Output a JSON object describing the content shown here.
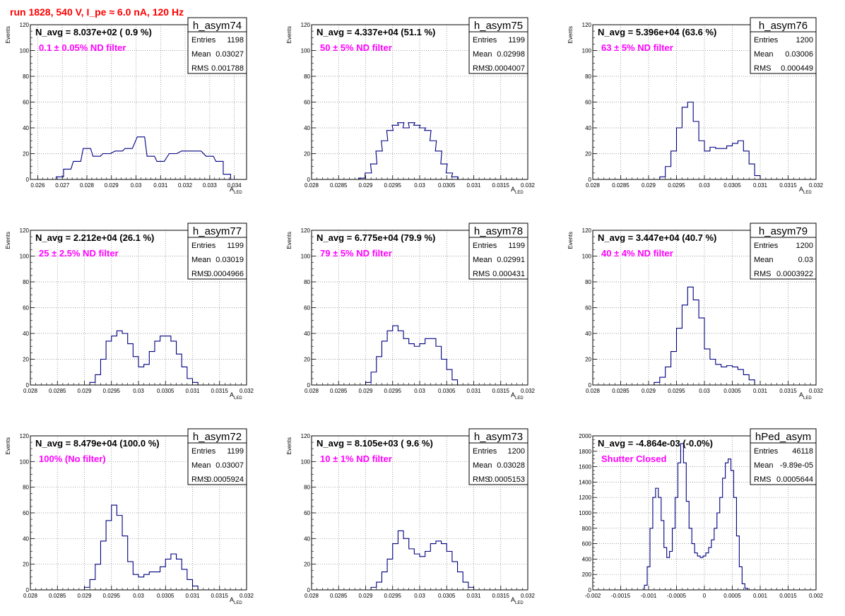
{
  "page": {
    "suptitle": "run 1828,   540 V, I_pe ≈ 6.0 nA, 120 Hz"
  },
  "stats_labels": {
    "entries": "Entries",
    "mean": "Mean",
    "rms": "RMS"
  },
  "colors": {
    "histogram": "#000080",
    "frame": "#000000",
    "grid": "#808080",
    "filter_label": "#ff00ff",
    "suptitle": "#ff0000",
    "background": "#ffffff"
  },
  "chart_data": [
    {
      "type": "histogram",
      "hist_name": "h_asym74",
      "navg_label": "N_avg = 8.037e+02 ( 0.9 %)",
      "filter_label": "0.1 ± 0.05% ND filter",
      "entries": "1198",
      "mean": "0.03027",
      "rms": "0.001788",
      "ylabel": "Events",
      "xlabel": "A_LED",
      "xlim": [
        0.0257,
        0.0345
      ],
      "ylim": [
        0,
        120
      ],
      "xticks": [
        0.026,
        0.027,
        0.028,
        0.029,
        0.03,
        0.031,
        0.032,
        0.033,
        0.034
      ],
      "xtick_labels": [
        "0.026",
        "0.027",
        "0.028",
        "0.029",
        "0.03",
        "0.031",
        "0.032",
        "0.033",
        "0.034"
      ],
      "yticks": [
        0,
        20,
        40,
        60,
        80,
        100,
        120
      ],
      "ytick_labels": [
        "0",
        "20",
        "40",
        "60",
        "80",
        "100",
        "120"
      ],
      "bins": [
        [
          0.0269,
          2
        ],
        [
          0.0272,
          8
        ],
        [
          0.0276,
          14
        ],
        [
          0.028,
          24
        ],
        [
          0.0284,
          18
        ],
        [
          0.0288,
          20
        ],
        [
          0.0293,
          22
        ],
        [
          0.0297,
          24
        ],
        [
          0.0302,
          33
        ],
        [
          0.0306,
          18
        ],
        [
          0.031,
          14
        ],
        [
          0.0315,
          20
        ],
        [
          0.032,
          22
        ],
        [
          0.0325,
          22
        ],
        [
          0.033,
          18
        ],
        [
          0.0334,
          14
        ],
        [
          0.0337,
          4
        ]
      ]
    },
    {
      "type": "histogram",
      "hist_name": "h_asym75",
      "navg_label": "N_avg = 4.337e+04 (51.1 %)",
      "filter_label": "50 ± 5% ND filter",
      "entries": "1199",
      "mean": "0.02998",
      "rms": "0.0004007",
      "ylabel": "Events",
      "xlabel": "A_LED",
      "xlim": [
        0.028,
        0.032
      ],
      "ylim": [
        0,
        120
      ],
      "xticks": [
        0.028,
        0.0285,
        0.029,
        0.0295,
        0.03,
        0.0305,
        0.031,
        0.0315,
        0.032
      ],
      "xtick_labels": [
        "0.028",
        "0.0285",
        "0.029",
        "0.0295",
        "0.03",
        "0.0305",
        "0.031",
        "0.0315",
        "0.032"
      ],
      "yticks": [
        0,
        20,
        40,
        60,
        80,
        100,
        120
      ],
      "ytick_labels": [
        "0",
        "20",
        "40",
        "60",
        "80",
        "100",
        "120"
      ],
      "bins": [
        [
          0.02893,
          1
        ],
        [
          0.02905,
          5
        ],
        [
          0.02915,
          12
        ],
        [
          0.02925,
          22
        ],
        [
          0.02935,
          30
        ],
        [
          0.02945,
          38
        ],
        [
          0.02955,
          42
        ],
        [
          0.02965,
          44
        ],
        [
          0.02975,
          40
        ],
        [
          0.02985,
          44
        ],
        [
          0.02995,
          42
        ],
        [
          0.03005,
          40
        ],
        [
          0.03015,
          38
        ],
        [
          0.03025,
          30
        ],
        [
          0.03035,
          22
        ],
        [
          0.03045,
          12
        ],
        [
          0.03055,
          5
        ],
        [
          0.03065,
          2
        ]
      ]
    },
    {
      "type": "histogram",
      "hist_name": "h_asym76",
      "navg_label": "N_avg = 5.396e+04 (63.6 %)",
      "filter_label": "63 ± 5% ND filter",
      "entries": "1200",
      "mean": "0.03006",
      "rms": "0.000449",
      "ylabel": "Events",
      "xlabel": "A_LED",
      "xlim": [
        0.028,
        0.032
      ],
      "ylim": [
        0,
        120
      ],
      "xticks": [
        0.028,
        0.0285,
        0.029,
        0.0295,
        0.03,
        0.0305,
        0.031,
        0.0315,
        0.032
      ],
      "xtick_labels": [
        "0.028",
        "0.0285",
        "0.029",
        "0.0295",
        "0.03",
        "0.0305",
        "0.031",
        "0.0315",
        "0.032"
      ],
      "yticks": [
        0,
        20,
        40,
        60,
        80,
        100,
        120
      ],
      "ytick_labels": [
        "0",
        "20",
        "40",
        "60",
        "80",
        "100",
        "120"
      ],
      "bins": [
        [
          0.02925,
          2
        ],
        [
          0.02935,
          10
        ],
        [
          0.02945,
          22
        ],
        [
          0.02955,
          40
        ],
        [
          0.02965,
          56
        ],
        [
          0.02975,
          60
        ],
        [
          0.02985,
          45
        ],
        [
          0.02995,
          30
        ],
        [
          0.03005,
          22
        ],
        [
          0.03015,
          25
        ],
        [
          0.03025,
          24
        ],
        [
          0.03035,
          24
        ],
        [
          0.03045,
          26
        ],
        [
          0.03055,
          28
        ],
        [
          0.03065,
          30
        ],
        [
          0.03075,
          22
        ],
        [
          0.03085,
          12
        ],
        [
          0.03095,
          3
        ]
      ]
    },
    {
      "type": "histogram",
      "hist_name": "h_asym77",
      "navg_label": "N_avg = 2.212e+04 (26.1 %)",
      "filter_label": "25 ± 2.5% ND filter",
      "entries": "1199",
      "mean": "0.03019",
      "rms": "0.0004966",
      "ylabel": "Events",
      "xlabel": "A_LED",
      "xlim": [
        0.028,
        0.032
      ],
      "ylim": [
        0,
        120
      ],
      "xticks": [
        0.028,
        0.0285,
        0.029,
        0.0295,
        0.03,
        0.0305,
        0.031,
        0.0315,
        0.032
      ],
      "xtick_labels": [
        "0.028",
        "0.0285",
        "0.029",
        "0.0295",
        "0.03",
        "0.0305",
        "0.031",
        "0.0315",
        "0.032"
      ],
      "yticks": [
        0,
        20,
        40,
        60,
        80,
        100,
        120
      ],
      "ytick_labels": [
        "0",
        "20",
        "40",
        "60",
        "80",
        "100",
        "120"
      ],
      "bins": [
        [
          0.02915,
          2
        ],
        [
          0.02925,
          8
        ],
        [
          0.02935,
          20
        ],
        [
          0.02945,
          34
        ],
        [
          0.02955,
          38
        ],
        [
          0.02965,
          42
        ],
        [
          0.02975,
          40
        ],
        [
          0.02985,
          32
        ],
        [
          0.02995,
          22
        ],
        [
          0.03005,
          14
        ],
        [
          0.03015,
          16
        ],
        [
          0.03025,
          26
        ],
        [
          0.03035,
          34
        ],
        [
          0.03045,
          38
        ],
        [
          0.03055,
          38
        ],
        [
          0.03065,
          34
        ],
        [
          0.03075,
          24
        ],
        [
          0.03085,
          14
        ],
        [
          0.03095,
          5
        ],
        [
          0.03105,
          2
        ]
      ]
    },
    {
      "type": "histogram",
      "hist_name": "h_asym78",
      "navg_label": "N_avg = 6.775e+04 (79.9 %)",
      "filter_label": "79 ± 5% ND filter",
      "entries": "1199",
      "mean": "0.02991",
      "rms": "0.000431",
      "ylabel": "Events",
      "xlabel": "A_LED",
      "xlim": [
        0.028,
        0.032
      ],
      "ylim": [
        0,
        120
      ],
      "xticks": [
        0.028,
        0.0285,
        0.029,
        0.0295,
        0.03,
        0.0305,
        0.031,
        0.0315,
        0.032
      ],
      "xtick_labels": [
        "0.028",
        "0.0285",
        "0.029",
        "0.0295",
        "0.03",
        "0.0305",
        "0.031",
        "0.0315",
        "0.032"
      ],
      "yticks": [
        0,
        20,
        40,
        60,
        80,
        100,
        120
      ],
      "ytick_labels": [
        "0",
        "20",
        "40",
        "60",
        "80",
        "100",
        "120"
      ],
      "bins": [
        [
          0.02905,
          2
        ],
        [
          0.02915,
          10
        ],
        [
          0.02925,
          22
        ],
        [
          0.02935,
          34
        ],
        [
          0.02945,
          42
        ],
        [
          0.02955,
          46
        ],
        [
          0.02965,
          42
        ],
        [
          0.02975,
          36
        ],
        [
          0.02985,
          32
        ],
        [
          0.02995,
          30
        ],
        [
          0.03005,
          32
        ],
        [
          0.03015,
          36
        ],
        [
          0.03025,
          36
        ],
        [
          0.03035,
          30
        ],
        [
          0.03045,
          20
        ],
        [
          0.03055,
          12
        ],
        [
          0.03065,
          4
        ]
      ]
    },
    {
      "type": "histogram",
      "hist_name": "h_asym79",
      "navg_label": "N_avg = 3.447e+04 (40.7 %)",
      "filter_label": "40 ± 4% ND filter",
      "entries": "1200",
      "mean": "0.03",
      "rms": "0.0003922",
      "ylabel": "Events",
      "xlabel": "A_LED",
      "xlim": [
        0.028,
        0.032
      ],
      "ylim": [
        0,
        120
      ],
      "xticks": [
        0.028,
        0.0285,
        0.029,
        0.0295,
        0.03,
        0.0305,
        0.031,
        0.0315,
        0.032
      ],
      "xtick_labels": [
        "0.028",
        "0.0285",
        "0.029",
        "0.0295",
        "0.03",
        "0.0305",
        "0.031",
        "0.0315",
        "0.032"
      ],
      "yticks": [
        0,
        20,
        40,
        60,
        80,
        100,
        120
      ],
      "ytick_labels": [
        "0",
        "20",
        "40",
        "60",
        "80",
        "100",
        "120"
      ],
      "bins": [
        [
          0.02915,
          2
        ],
        [
          0.02925,
          6
        ],
        [
          0.02935,
          14
        ],
        [
          0.02945,
          26
        ],
        [
          0.02955,
          44
        ],
        [
          0.02965,
          62
        ],
        [
          0.02975,
          76
        ],
        [
          0.02985,
          66
        ],
        [
          0.02995,
          52
        ],
        [
          0.03005,
          28
        ],
        [
          0.03015,
          20
        ],
        [
          0.03025,
          16
        ],
        [
          0.03035,
          14
        ],
        [
          0.03045,
          15
        ],
        [
          0.03055,
          14
        ],
        [
          0.03065,
          12
        ],
        [
          0.03075,
          8
        ],
        [
          0.03085,
          4
        ]
      ]
    },
    {
      "type": "histogram",
      "hist_name": "h_asym72",
      "navg_label": "N_avg = 8.479e+04 (100.0 %)",
      "filter_label": "100% (No filter)",
      "entries": "1199",
      "mean": "0.03007",
      "rms": "0.0005924",
      "ylabel": "Events",
      "xlabel": "A_LED",
      "xlim": [
        0.028,
        0.032
      ],
      "ylim": [
        0,
        120
      ],
      "xticks": [
        0.028,
        0.0285,
        0.029,
        0.0295,
        0.03,
        0.0305,
        0.031,
        0.0315,
        0.032
      ],
      "xtick_labels": [
        "0.028",
        "0.0285",
        "0.029",
        "0.0295",
        "0.03",
        "0.0305",
        "0.031",
        "0.0315",
        "0.032"
      ],
      "yticks": [
        0,
        20,
        40,
        60,
        80,
        100,
        120
      ],
      "ytick_labels": [
        "0",
        "20",
        "40",
        "60",
        "80",
        "100",
        "120"
      ],
      "bins": [
        [
          0.02905,
          2
        ],
        [
          0.02915,
          8
        ],
        [
          0.02925,
          20
        ],
        [
          0.02935,
          38
        ],
        [
          0.02945,
          54
        ],
        [
          0.02955,
          66
        ],
        [
          0.02965,
          58
        ],
        [
          0.02975,
          42
        ],
        [
          0.02985,
          22
        ],
        [
          0.02995,
          12
        ],
        [
          0.03005,
          10
        ],
        [
          0.03015,
          12
        ],
        [
          0.03025,
          14
        ],
        [
          0.03035,
          14
        ],
        [
          0.03045,
          18
        ],
        [
          0.03055,
          24
        ],
        [
          0.03065,
          28
        ],
        [
          0.03075,
          24
        ],
        [
          0.03085,
          16
        ],
        [
          0.03095,
          8
        ],
        [
          0.03105,
          3
        ]
      ]
    },
    {
      "type": "histogram",
      "hist_name": "h_asym73",
      "navg_label": "N_avg = 8.105e+03 ( 9.6 %)",
      "filter_label": "10 ± 1% ND filter",
      "entries": "1200",
      "mean": "0.03028",
      "rms": "0.0005153",
      "ylabel": "Events",
      "xlabel": "A_LED",
      "xlim": [
        0.028,
        0.032
      ],
      "ylim": [
        0,
        120
      ],
      "xticks": [
        0.028,
        0.0285,
        0.029,
        0.0295,
        0.03,
        0.0305,
        0.031,
        0.0315,
        0.032
      ],
      "xtick_labels": [
        "0.028",
        "0.0285",
        "0.029",
        "0.0295",
        "0.03",
        "0.0305",
        "0.031",
        "0.0315",
        "0.032"
      ],
      "yticks": [
        0,
        20,
        40,
        60,
        80,
        100,
        120
      ],
      "ytick_labels": [
        "0",
        "20",
        "40",
        "60",
        "80",
        "100",
        "120"
      ],
      "bins": [
        [
          0.02915,
          2
        ],
        [
          0.02925,
          6
        ],
        [
          0.02935,
          14
        ],
        [
          0.02945,
          24
        ],
        [
          0.02955,
          36
        ],
        [
          0.02965,
          46
        ],
        [
          0.02975,
          40
        ],
        [
          0.02985,
          32
        ],
        [
          0.02995,
          28
        ],
        [
          0.03005,
          26
        ],
        [
          0.03015,
          30
        ],
        [
          0.03025,
          36
        ],
        [
          0.03035,
          38
        ],
        [
          0.03045,
          36
        ],
        [
          0.03055,
          30
        ],
        [
          0.03065,
          22
        ],
        [
          0.03075,
          14
        ],
        [
          0.03085,
          6
        ],
        [
          0.03095,
          2
        ]
      ]
    },
    {
      "type": "histogram",
      "hist_name": "hPed_asym",
      "navg_label": "N_avg = -4.864e-03 (-0.0%)",
      "filter_label": "Shutter Closed",
      "entries": "46118",
      "mean": "-9.89e-05",
      "rms": "0.0005644",
      "ylabel": "",
      "xlabel": "",
      "xlim": [
        -0.002,
        0.002
      ],
      "ylim": [
        0,
        2000
      ],
      "xticks": [
        -0.002,
        -0.0015,
        -0.001,
        -0.0005,
        0,
        0.0005,
        0.001,
        0.0015,
        0.002
      ],
      "xtick_labels": [
        "-0.002",
        "-0.0015",
        "-0.001",
        "-0.0005",
        "0",
        "0.0005",
        "0.001",
        "0.0015",
        "0.002"
      ],
      "yticks": [
        0,
        200,
        400,
        600,
        800,
        1000,
        1200,
        1400,
        1600,
        1800,
        2000
      ],
      "ytick_labels": [
        "0",
        "200",
        "400",
        "600",
        "800",
        "1000",
        "1200",
        "1400",
        "1600",
        "1800",
        "2000"
      ],
      "bins": [
        [
          -0.00105,
          60
        ],
        [
          -0.001,
          300
        ],
        [
          -0.00095,
          800
        ],
        [
          -0.0009,
          1200
        ],
        [
          -0.00085,
          1320
        ],
        [
          -0.0008,
          1200
        ],
        [
          -0.00075,
          900
        ],
        [
          -0.0007,
          550
        ],
        [
          -0.00065,
          420
        ],
        [
          -0.0006,
          500
        ],
        [
          -0.00055,
          800
        ],
        [
          -0.0005,
          1200
        ],
        [
          -0.00045,
          1650
        ],
        [
          -0.0004,
          1900
        ],
        [
          -0.00035,
          1650
        ],
        [
          -0.0003,
          1150
        ],
        [
          -0.00025,
          800
        ],
        [
          -0.0002,
          600
        ],
        [
          -0.00015,
          480
        ],
        [
          -0.0001,
          440
        ],
        [
          -5e-05,
          420
        ],
        [
          0.0,
          440
        ],
        [
          5e-05,
          480
        ],
        [
          0.0001,
          550
        ],
        [
          0.00015,
          650
        ],
        [
          0.0002,
          800
        ],
        [
          0.00025,
          1000
        ],
        [
          0.0003,
          1200
        ],
        [
          0.00035,
          1450
        ],
        [
          0.0004,
          1650
        ],
        [
          0.00045,
          1700
        ],
        [
          0.0005,
          1550
        ],
        [
          0.00055,
          1200
        ],
        [
          0.0006,
          700
        ],
        [
          0.00065,
          300
        ],
        [
          0.0007,
          80
        ],
        [
          0.00075,
          20
        ]
      ]
    }
  ]
}
